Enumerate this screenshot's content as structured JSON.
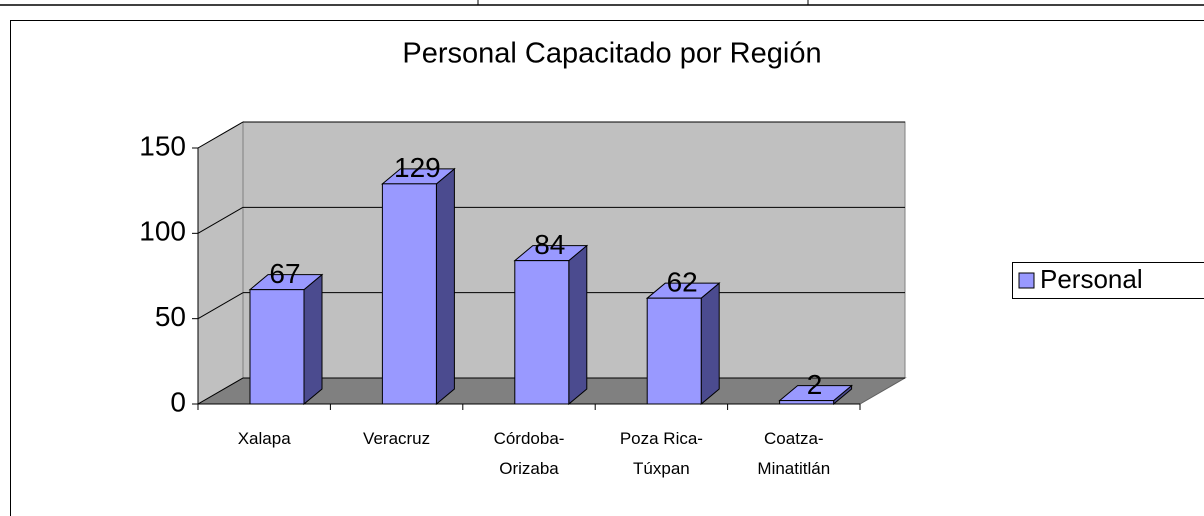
{
  "chart_data": {
    "type": "bar",
    "title": "Personal Capacitado por Región",
    "categories": [
      "Xalapa",
      "Veracruz",
      "Córdoba-Orizaba",
      "Poza Rica-Túxpan",
      "Coatza-Minatitlán"
    ],
    "series": [
      {
        "name": "Personal",
        "color": "#9999ff",
        "values": [
          67,
          129,
          84,
          62,
          2
        ]
      }
    ],
    "ylim": [
      0,
      150
    ],
    "yticks": [
      0,
      50,
      100,
      150
    ],
    "grid": true,
    "legend": "right"
  }
}
